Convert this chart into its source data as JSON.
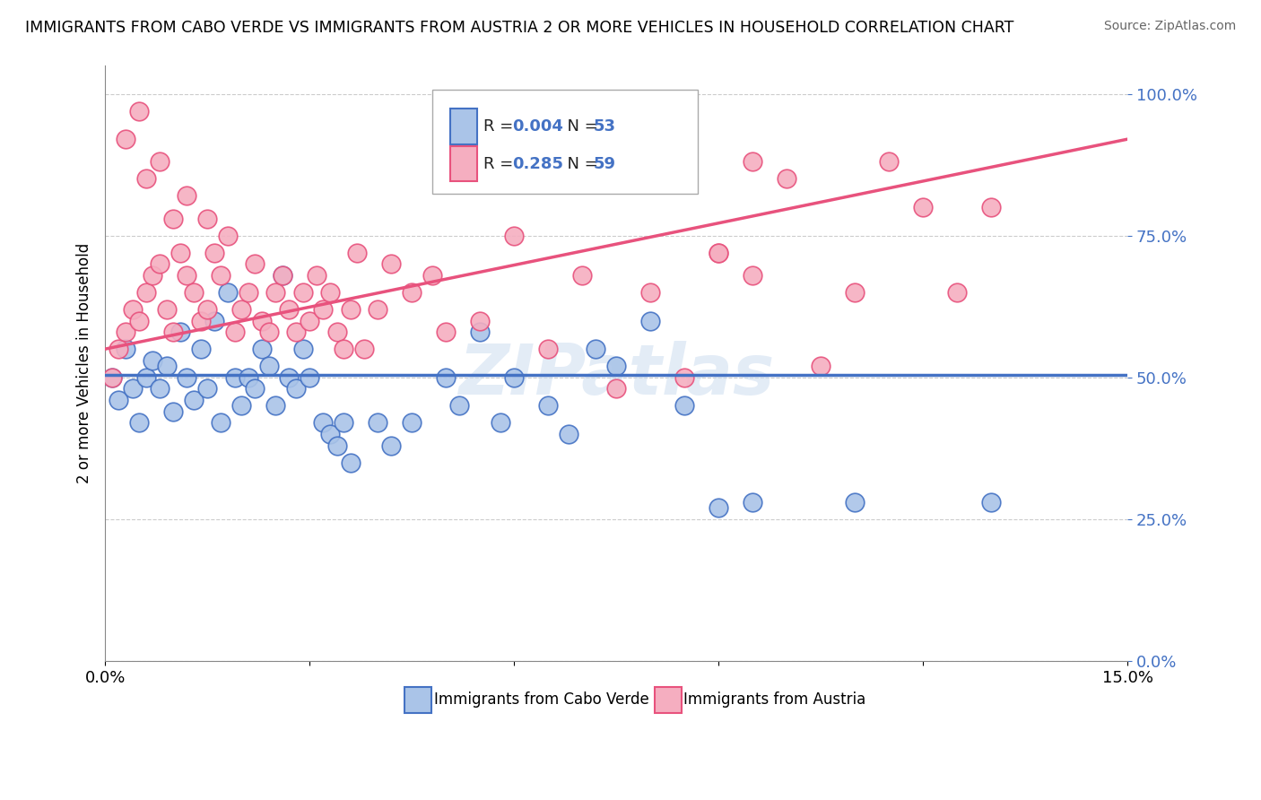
{
  "title": "IMMIGRANTS FROM CABO VERDE VS IMMIGRANTS FROM AUSTRIA 2 OR MORE VEHICLES IN HOUSEHOLD CORRELATION CHART",
  "source": "Source: ZipAtlas.com",
  "ylabel": "2 or more Vehicles in Household",
  "xlim": [
    0.0,
    0.15
  ],
  "ylim": [
    0.0,
    1.05
  ],
  "yticks": [
    0.0,
    0.25,
    0.5,
    0.75,
    1.0
  ],
  "ytick_labels": [
    "0.0%",
    "25.0%",
    "50.0%",
    "75.0%",
    "100.0%"
  ],
  "cabo_verde_R": 0.004,
  "cabo_verde_N": 53,
  "austria_R": 0.285,
  "austria_N": 59,
  "cabo_verde_color": "#aac4e8",
  "austria_color": "#f5aec0",
  "cabo_verde_line_color": "#4472c4",
  "austria_line_color": "#e8527d",
  "watermark": "ZIPatlas",
  "background_color": "#ffffff",
  "cabo_verde_x": [
    0.001,
    0.002,
    0.003,
    0.004,
    0.005,
    0.006,
    0.007,
    0.008,
    0.009,
    0.01,
    0.011,
    0.012,
    0.013,
    0.014,
    0.015,
    0.016,
    0.017,
    0.018,
    0.019,
    0.02,
    0.021,
    0.022,
    0.023,
    0.024,
    0.025,
    0.026,
    0.027,
    0.028,
    0.029,
    0.03,
    0.032,
    0.033,
    0.034,
    0.035,
    0.036,
    0.04,
    0.042,
    0.045,
    0.05,
    0.052,
    0.055,
    0.058,
    0.06,
    0.065,
    0.068,
    0.072,
    0.075,
    0.08,
    0.085,
    0.09,
    0.095,
    0.11,
    0.13
  ],
  "cabo_verde_y": [
    0.5,
    0.46,
    0.55,
    0.48,
    0.42,
    0.5,
    0.53,
    0.48,
    0.52,
    0.44,
    0.58,
    0.5,
    0.46,
    0.55,
    0.48,
    0.6,
    0.42,
    0.65,
    0.5,
    0.45,
    0.5,
    0.48,
    0.55,
    0.52,
    0.45,
    0.68,
    0.5,
    0.48,
    0.55,
    0.5,
    0.42,
    0.4,
    0.38,
    0.42,
    0.35,
    0.42,
    0.38,
    0.42,
    0.5,
    0.45,
    0.58,
    0.42,
    0.5,
    0.45,
    0.4,
    0.55,
    0.52,
    0.6,
    0.45,
    0.27,
    0.28,
    0.28,
    0.28
  ],
  "austria_x": [
    0.001,
    0.002,
    0.003,
    0.004,
    0.005,
    0.006,
    0.007,
    0.008,
    0.009,
    0.01,
    0.011,
    0.012,
    0.013,
    0.014,
    0.015,
    0.016,
    0.017,
    0.018,
    0.019,
    0.02,
    0.021,
    0.022,
    0.023,
    0.024,
    0.025,
    0.026,
    0.027,
    0.028,
    0.029,
    0.03,
    0.031,
    0.032,
    0.033,
    0.034,
    0.035,
    0.036,
    0.037,
    0.038,
    0.04,
    0.042,
    0.045,
    0.048,
    0.05,
    0.055,
    0.06,
    0.065,
    0.07,
    0.075,
    0.08,
    0.085,
    0.09,
    0.095,
    0.1,
    0.105,
    0.11,
    0.115,
    0.12,
    0.125,
    0.13
  ],
  "austria_y": [
    0.5,
    0.55,
    0.58,
    0.62,
    0.6,
    0.65,
    0.68,
    0.7,
    0.62,
    0.58,
    0.72,
    0.68,
    0.65,
    0.6,
    0.62,
    0.72,
    0.68,
    0.75,
    0.58,
    0.62,
    0.65,
    0.7,
    0.6,
    0.58,
    0.65,
    0.68,
    0.62,
    0.58,
    0.65,
    0.6,
    0.68,
    0.62,
    0.65,
    0.58,
    0.55,
    0.62,
    0.72,
    0.55,
    0.62,
    0.7,
    0.65,
    0.68,
    0.58,
    0.6,
    0.75,
    0.55,
    0.68,
    0.48,
    0.65,
    0.5,
    0.72,
    0.88,
    0.85,
    0.52,
    0.65,
    0.88,
    0.8,
    0.65,
    0.8
  ],
  "austria_extra_x": [
    0.003,
    0.005,
    0.006,
    0.008,
    0.01,
    0.012,
    0.015,
    0.09,
    0.095
  ],
  "austria_extra_y": [
    0.92,
    0.97,
    0.85,
    0.88,
    0.78,
    0.82,
    0.78,
    0.72,
    0.68
  ]
}
